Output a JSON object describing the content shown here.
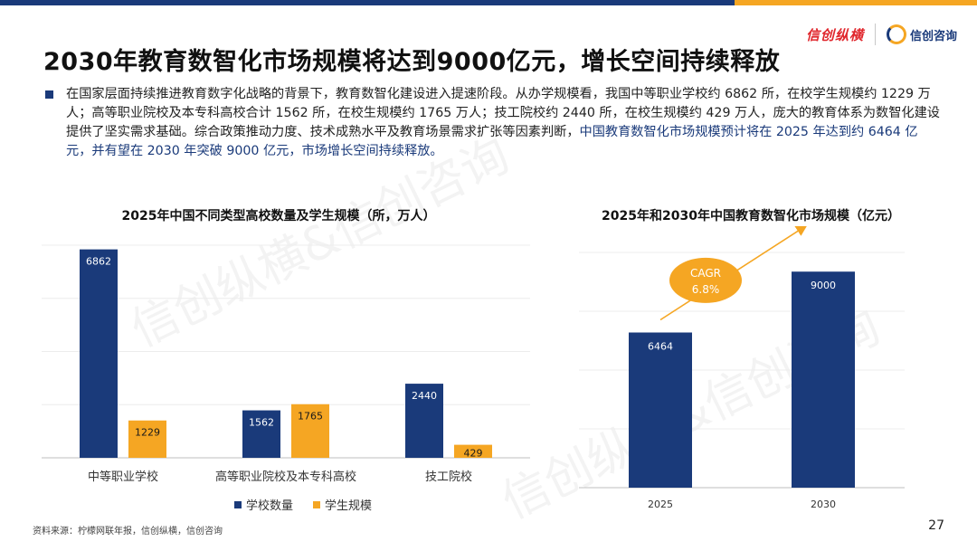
{
  "header": {
    "logo_primary": "信创纵横",
    "logo_secondary": "信创咨询",
    "title": "2030年教育数智化市场规模将达到9000亿元，增长空间持续释放"
  },
  "intro": {
    "text_main": "在国家层面持续推进教育数字化战略的背景下，教育数智化建设进入提速阶段。从办学规模看，我国中等职业学校约 6862 所，在校学生规模约 1229 万人；高等职业院校及本专科高校合计 1562 所，在校生规模约 1765 万人；技工院校约 2440 所，在校生规模约 429 万人，庞大的教育体系为数智化建设提供了坚实需求基础。综合政策推动力度、技术成熟水平及教育场景需求扩张等因素判断，",
    "text_highlight": "中国教育数智化市场规模预计将在 2025 年达到约 6464 亿元，并有望在 2030 年突破 9000 亿元，市场增长空间持续释放。"
  },
  "colors": {
    "navy": "#1a3a7a",
    "orange": "#f5a623"
  },
  "chart_data": [
    {
      "type": "bar",
      "title": "2025年中国不同类型高校数量及学生规模（所，万人）",
      "categories": [
        "中等职业学校",
        "高等职业院校及本专科高校",
        "技工院校"
      ],
      "series": [
        {
          "name": "学校数量",
          "values": [
            6862,
            1562,
            2440
          ],
          "color": "#1a3a7a"
        },
        {
          "name": "学生规模",
          "values": [
            1229,
            1765,
            429
          ],
          "color": "#f5a623"
        }
      ],
      "ylim": [
        0,
        7000
      ],
      "legend": "bottom"
    },
    {
      "type": "bar",
      "title": "2025年和2030年中国教育数智化市场规模（亿元）",
      "categories": [
        "2025",
        "2030"
      ],
      "values": [
        6464,
        9000
      ],
      "ylim": [
        0,
        9800
      ],
      "annotation": {
        "line1": "CAGR",
        "line2": "6.8%"
      }
    }
  ],
  "watermark": "信创纵横&信创咨询",
  "footer": {
    "source": "资料来源：柠檬网联年报，信创纵横，信创咨询",
    "page_number": "27"
  }
}
